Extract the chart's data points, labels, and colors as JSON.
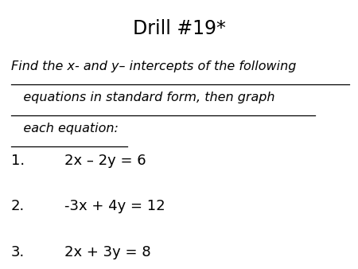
{
  "title": "Drill #19*",
  "title_fontsize": 17,
  "instruction_line1": "Find the x- and y– intercepts of the following",
  "instruction_line2": "   equations in standard form, then graph",
  "instruction_line3": "   each equation:",
  "instruction_fontsize": 11.5,
  "item1_num": "1.",
  "item1_eq": "2x – 2y = 6",
  "item2_num": "2.",
  "item2_eq": "-3x + 4y = 12",
  "item3_num": "3.",
  "item3_eq": "2x + 3y = 8",
  "item_fontsize": 13,
  "background_color": "#ffffff",
  "text_color": "#000000",
  "underline_color": "#000000"
}
